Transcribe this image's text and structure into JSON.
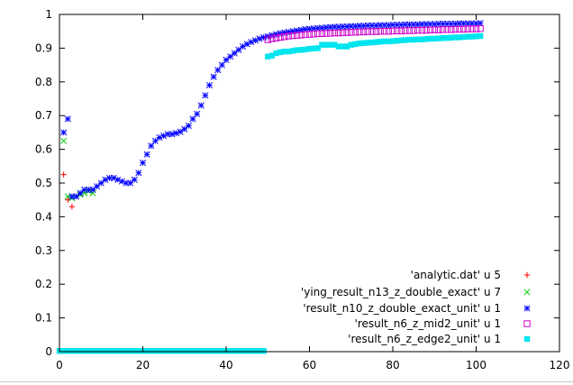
{
  "chart_data": {
    "type": "scatter",
    "title": "",
    "xlabel": "",
    "ylabel": "",
    "xlim": [
      0,
      120
    ],
    "ylim": [
      0,
      1
    ],
    "grid": false,
    "legend_position": "bottom-right",
    "xticks": [
      "0",
      "20",
      "40",
      "60",
      "80",
      "100",
      "120"
    ],
    "yticks": [
      "0",
      "0.1",
      "0.2",
      "0.3",
      "0.4",
      "0.5",
      "0.6",
      "0.7",
      "0.8",
      "0.9",
      "1"
    ],
    "series": [
      {
        "name": "'analytic.dat' u 5",
        "marker": "plus",
        "color": "#ff0000",
        "points": [
          [
            1,
            0.525
          ],
          [
            2,
            0.45
          ],
          [
            3,
            0.43
          ]
        ]
      },
      {
        "name": "'ying_result_n13_z_double_exact' u 7",
        "marker": "cross",
        "color": "#00cc00",
        "points": [
          [
            1,
            0.625
          ],
          [
            2,
            0.46
          ],
          [
            3,
            0.455
          ],
          [
            4,
            0.46
          ],
          [
            5,
            0.465
          ],
          [
            6,
            0.47
          ],
          [
            7,
            0.475
          ],
          [
            8,
            0.47
          ]
        ]
      },
      {
        "name": "'result_n10_z_double_exact_unit' u 1",
        "marker": "star",
        "color": "#0000ff",
        "points": [
          [
            1,
            0.65
          ],
          [
            2,
            0.69
          ],
          [
            3,
            0.46
          ],
          [
            4,
            0.46
          ],
          [
            5,
            0.47
          ],
          [
            6,
            0.48
          ],
          [
            7,
            0.48
          ],
          [
            8,
            0.48
          ],
          [
            9,
            0.49
          ],
          [
            10,
            0.5
          ],
          [
            11,
            0.51
          ],
          [
            12,
            0.515
          ],
          [
            13,
            0.515
          ],
          [
            14,
            0.51
          ],
          [
            15,
            0.505
          ],
          [
            16,
            0.5
          ],
          [
            17,
            0.5
          ],
          [
            18,
            0.51
          ],
          [
            19,
            0.53
          ],
          [
            20,
            0.56
          ],
          [
            21,
            0.585
          ],
          [
            22,
            0.61
          ],
          [
            23,
            0.625
          ],
          [
            24,
            0.635
          ],
          [
            25,
            0.64
          ],
          [
            26,
            0.645
          ],
          [
            27,
            0.645
          ],
          [
            28,
            0.648
          ],
          [
            29,
            0.652
          ],
          [
            30,
            0.66
          ],
          [
            31,
            0.67
          ],
          [
            32,
            0.69
          ],
          [
            33,
            0.705
          ],
          [
            34,
            0.73
          ],
          [
            35,
            0.76
          ],
          [
            36,
            0.79
          ],
          [
            37,
            0.815
          ],
          [
            38,
            0.835
          ],
          [
            39,
            0.85
          ],
          [
            40,
            0.865
          ],
          [
            41,
            0.875
          ],
          [
            42,
            0.885
          ],
          [
            43,
            0.895
          ],
          [
            44,
            0.905
          ],
          [
            45,
            0.912
          ],
          [
            46,
            0.918
          ],
          [
            47,
            0.923
          ],
          [
            48,
            0.928
          ],
          [
            49,
            0.932
          ],
          [
            50,
            0.935
          ],
          [
            51,
            0.938
          ],
          [
            52,
            0.941
          ],
          [
            53,
            0.944
          ],
          [
            54,
            0.946
          ],
          [
            55,
            0.948
          ],
          [
            56,
            0.95
          ],
          [
            57,
            0.952
          ],
          [
            58,
            0.954
          ],
          [
            59,
            0.956
          ],
          [
            60,
            0.957
          ],
          [
            61,
            0.958
          ],
          [
            62,
            0.959
          ],
          [
            63,
            0.96
          ],
          [
            64,
            0.961
          ],
          [
            65,
            0.962
          ],
          [
            66,
            0.963
          ],
          [
            67,
            0.963
          ],
          [
            68,
            0.964
          ],
          [
            69,
            0.964
          ],
          [
            70,
            0.965
          ],
          [
            71,
            0.965
          ],
          [
            72,
            0.966
          ],
          [
            73,
            0.966
          ],
          [
            74,
            0.967
          ],
          [
            75,
            0.967
          ],
          [
            76,
            0.967
          ],
          [
            77,
            0.968
          ],
          [
            78,
            0.968
          ],
          [
            79,
            0.968
          ],
          [
            80,
            0.969
          ],
          [
            81,
            0.969
          ],
          [
            82,
            0.969
          ],
          [
            83,
            0.97
          ],
          [
            84,
            0.97
          ],
          [
            85,
            0.97
          ],
          [
            86,
            0.97
          ],
          [
            87,
            0.971
          ],
          [
            88,
            0.971
          ],
          [
            89,
            0.971
          ],
          [
            90,
            0.971
          ],
          [
            91,
            0.972
          ],
          [
            92,
            0.972
          ],
          [
            93,
            0.972
          ],
          [
            94,
            0.972
          ],
          [
            95,
            0.972
          ],
          [
            96,
            0.973
          ],
          [
            97,
            0.973
          ],
          [
            98,
            0.973
          ],
          [
            99,
            0.973
          ],
          [
            100,
            0.973
          ],
          [
            101,
            0.974
          ]
        ]
      },
      {
        "name": "'result_n6_z_mid2_unit' u 1",
        "marker": "open-square",
        "color": "#cc00cc",
        "points": [
          [
            50,
            0.925
          ],
          [
            51,
            0.928
          ],
          [
            52,
            0.93
          ],
          [
            53,
            0.932
          ],
          [
            54,
            0.934
          ],
          [
            55,
            0.936
          ],
          [
            56,
            0.937
          ],
          [
            57,
            0.938
          ],
          [
            58,
            0.939
          ],
          [
            59,
            0.94
          ],
          [
            60,
            0.941
          ],
          [
            61,
            0.942
          ],
          [
            62,
            0.943
          ],
          [
            63,
            0.943
          ],
          [
            64,
            0.944
          ],
          [
            65,
            0.944
          ],
          [
            66,
            0.945
          ],
          [
            67,
            0.945
          ],
          [
            68,
            0.946
          ],
          [
            69,
            0.946
          ],
          [
            70,
            0.947
          ],
          [
            71,
            0.947
          ],
          [
            72,
            0.948
          ],
          [
            73,
            0.948
          ],
          [
            74,
            0.949
          ],
          [
            75,
            0.949
          ],
          [
            76,
            0.949
          ],
          [
            77,
            0.95
          ],
          [
            78,
            0.95
          ],
          [
            79,
            0.95
          ],
          [
            80,
            0.951
          ],
          [
            81,
            0.951
          ],
          [
            82,
            0.951
          ],
          [
            83,
            0.952
          ],
          [
            84,
            0.952
          ],
          [
            85,
            0.952
          ],
          [
            86,
            0.953
          ],
          [
            87,
            0.953
          ],
          [
            88,
            0.953
          ],
          [
            89,
            0.954
          ],
          [
            90,
            0.954
          ],
          [
            91,
            0.954
          ],
          [
            92,
            0.955
          ],
          [
            93,
            0.955
          ],
          [
            94,
            0.955
          ],
          [
            95,
            0.956
          ],
          [
            96,
            0.956
          ],
          [
            97,
            0.956
          ],
          [
            98,
            0.957
          ],
          [
            99,
            0.957
          ],
          [
            100,
            0.957
          ],
          [
            101,
            0.958
          ]
        ]
      },
      {
        "name": "'result_n6_z_edge2_unit' u 1",
        "marker": "filled-square",
        "color": "#00e5ee",
        "points": [
          [
            0,
            0.002
          ],
          [
            1,
            0.002
          ],
          [
            2,
            0.002
          ],
          [
            3,
            0.002
          ],
          [
            4,
            0.002
          ],
          [
            5,
            0.002
          ],
          [
            6,
            0.002
          ],
          [
            7,
            0.002
          ],
          [
            8,
            0.002
          ],
          [
            9,
            0.002
          ],
          [
            10,
            0.002
          ],
          [
            11,
            0.002
          ],
          [
            12,
            0.002
          ],
          [
            13,
            0.002
          ],
          [
            14,
            0.002
          ],
          [
            15,
            0.002
          ],
          [
            16,
            0.002
          ],
          [
            17,
            0.002
          ],
          [
            18,
            0.002
          ],
          [
            19,
            0.002
          ],
          [
            20,
            0.002
          ],
          [
            21,
            0.002
          ],
          [
            22,
            0.002
          ],
          [
            23,
            0.002
          ],
          [
            24,
            0.002
          ],
          [
            25,
            0.002
          ],
          [
            26,
            0.002
          ],
          [
            27,
            0.002
          ],
          [
            28,
            0.002
          ],
          [
            29,
            0.002
          ],
          [
            30,
            0.002
          ],
          [
            31,
            0.002
          ],
          [
            32,
            0.002
          ],
          [
            33,
            0.002
          ],
          [
            34,
            0.002
          ],
          [
            35,
            0.002
          ],
          [
            36,
            0.002
          ],
          [
            37,
            0.002
          ],
          [
            38,
            0.002
          ],
          [
            39,
            0.002
          ],
          [
            40,
            0.002
          ],
          [
            41,
            0.002
          ],
          [
            42,
            0.002
          ],
          [
            43,
            0.002
          ],
          [
            44,
            0.002
          ],
          [
            45,
            0.002
          ],
          [
            46,
            0.002
          ],
          [
            47,
            0.002
          ],
          [
            48,
            0.002
          ],
          [
            49,
            0.002
          ],
          [
            50,
            0.875
          ],
          [
            51,
            0.878
          ],
          [
            52,
            0.885
          ],
          [
            53,
            0.888
          ],
          [
            54,
            0.89
          ],
          [
            55,
            0.89
          ],
          [
            56,
            0.892
          ],
          [
            57,
            0.894
          ],
          [
            58,
            0.895
          ],
          [
            59,
            0.896
          ],
          [
            60,
            0.898
          ],
          [
            61,
            0.899
          ],
          [
            62,
            0.9
          ],
          [
            63,
            0.91
          ],
          [
            64,
            0.91
          ],
          [
            65,
            0.91
          ],
          [
            66,
            0.91
          ],
          [
            67,
            0.905
          ],
          [
            68,
            0.905
          ],
          [
            69,
            0.905
          ],
          [
            70,
            0.91
          ],
          [
            71,
            0.912
          ],
          [
            72,
            0.914
          ],
          [
            73,
            0.915
          ],
          [
            74,
            0.916
          ],
          [
            75,
            0.917
          ],
          [
            76,
            0.918
          ],
          [
            77,
            0.919
          ],
          [
            78,
            0.92
          ],
          [
            79,
            0.92
          ],
          [
            80,
            0.921
          ],
          [
            81,
            0.922
          ],
          [
            82,
            0.923
          ],
          [
            83,
            0.924
          ],
          [
            84,
            0.925
          ],
          [
            85,
            0.925
          ],
          [
            86,
            0.926
          ],
          [
            87,
            0.926
          ],
          [
            88,
            0.927
          ],
          [
            89,
            0.928
          ],
          [
            90,
            0.928
          ],
          [
            91,
            0.929
          ],
          [
            92,
            0.93
          ],
          [
            93,
            0.93
          ],
          [
            94,
            0.931
          ],
          [
            95,
            0.932
          ],
          [
            96,
            0.932
          ],
          [
            97,
            0.933
          ],
          [
            98,
            0.934
          ],
          [
            99,
            0.934
          ],
          [
            100,
            0.935
          ],
          [
            101,
            0.936
          ]
        ]
      }
    ]
  }
}
